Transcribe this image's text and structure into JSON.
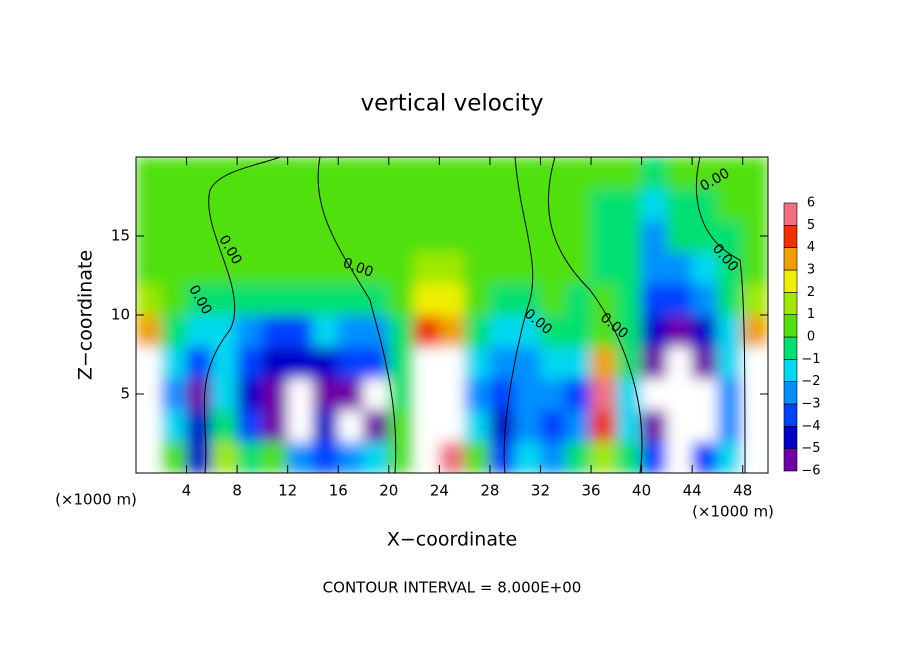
{
  "chart_data": {
    "type": "heatmap",
    "title": "vertical velocity",
    "x_label": "X−coordinate",
    "y_label": "Z−coordinate",
    "x_unit": "(×1000 m)",
    "footer": "CONTOUR INTERVAL = 8.000E+00",
    "contour_labels": [
      "0.00",
      "0.00",
      "0.00",
      "0.00",
      "0.00",
      "0.00",
      "0.00"
    ],
    "xlim": [
      0,
      50
    ],
    "ylim": [
      0,
      20
    ],
    "xticks": [
      4,
      8,
      12,
      16,
      20,
      24,
      28,
      32,
      36,
      40,
      44,
      48
    ],
    "yticks": [
      5,
      10,
      15
    ],
    "x_edges": [
      0,
      2,
      4,
      6,
      8,
      10,
      12,
      14,
      16,
      18,
      20,
      22,
      24,
      26,
      28,
      30,
      32,
      34,
      36,
      38,
      40,
      42,
      44,
      46,
      48,
      50
    ],
    "y_edges": [
      0,
      2,
      4,
      6,
      8,
      10,
      12,
      14,
      16,
      18,
      20
    ],
    "z": [
      [
        7,
        1,
        -4,
        2,
        0,
        1,
        -2,
        -3,
        -2,
        -1,
        0.5,
        7,
        6,
        1,
        -3,
        -1,
        -2,
        0,
        2,
        0,
        -3,
        -7,
        -3,
        -1,
        7
      ],
      [
        8,
        -1,
        -4,
        0,
        -3,
        -5,
        -8,
        -4,
        -8,
        -6,
        1,
        8,
        8,
        -1,
        -4,
        -2,
        -3,
        -2,
        5,
        -1,
        -5,
        -8,
        -7,
        -2,
        8
      ],
      [
        8,
        -2,
        -5,
        -1,
        -4,
        -5,
        -8,
        -5,
        -5,
        -8,
        0,
        8,
        8,
        -2,
        -3,
        -2,
        -2,
        -3,
        6,
        -1,
        -7,
        -8,
        -8,
        -2,
        8
      ],
      [
        8,
        -1,
        -3,
        -1,
        -3,
        -4,
        -4,
        -4,
        -3,
        -3,
        0,
        8,
        8,
        -1,
        -2,
        -2,
        -1,
        -1,
        4,
        0,
        -6,
        -8,
        -6,
        -1,
        8
      ],
      [
        4,
        0,
        -1,
        -1,
        -2,
        -3,
        -3,
        -1,
        -2,
        -2,
        0,
        5,
        4,
        0,
        -1,
        -1,
        0,
        0,
        1,
        0,
        -4,
        -5,
        -4,
        -1,
        4
      ],
      [
        2,
        0.5,
        0,
        0,
        0,
        0,
        0,
        0,
        0,
        0,
        1,
        3,
        2.5,
        0.5,
        0,
        0,
        0.5,
        0,
        0.5,
        -0.5,
        -3,
        -3.5,
        -2,
        0,
        1.5
      ],
      [
        1,
        0.5,
        0.5,
        0.5,
        0.5,
        0.5,
        0.5,
        0.5,
        0.5,
        0.5,
        1,
        1.5,
        1.2,
        0.5,
        0.5,
        0.3,
        0.3,
        0.2,
        0,
        -0.5,
        -2.5,
        -2,
        -1,
        0,
        0.5
      ],
      [
        0.5,
        0.5,
        0.3,
        0.3,
        0.3,
        0.3,
        0.3,
        0.3,
        0.3,
        0.3,
        0.5,
        0.7,
        0.6,
        0.3,
        0.3,
        0.3,
        0.2,
        0.2,
        0,
        -0.5,
        -2,
        -0.5,
        -0.3,
        0,
        0.3
      ],
      [
        0.3,
        0.3,
        0.3,
        0.3,
        0.3,
        0.3,
        0.3,
        0.3,
        0.3,
        0.3,
        0.3,
        0.4,
        0.4,
        0.3,
        0.3,
        0.3,
        0.2,
        0.2,
        0,
        -0.3,
        -1,
        -0.3,
        0,
        0.2,
        0.3
      ],
      [
        0.2,
        0.2,
        0.2,
        0.2,
        0.2,
        0.2,
        0.2,
        0.2,
        0.2,
        0.2,
        0.2,
        0.2,
        0.2,
        0.2,
        0.2,
        0.2,
        0.2,
        0.2,
        0.2,
        0.1,
        0,
        0.1,
        0.2,
        0.2,
        0.2
      ]
    ],
    "levels": [
      -6,
      -5,
      -4,
      -3,
      -2,
      -1,
      0,
      1,
      2,
      3,
      4,
      5,
      6
    ],
    "level_labels": [
      "−6",
      "−5",
      "−4",
      "−3",
      "−2",
      "−1",
      "0",
      "1",
      "2",
      "3",
      "4",
      "5",
      "6"
    ],
    "colors": [
      "#7000a8",
      "#0000c8",
      "#0040ff",
      "#0090ff",
      "#00d8f0",
      "#00e070",
      "#50e010",
      "#a0e800",
      "#f0f000",
      "#f0a000",
      "#f03000",
      "#f07080"
    ],
    "out_of_range_color": "#ffffff"
  }
}
